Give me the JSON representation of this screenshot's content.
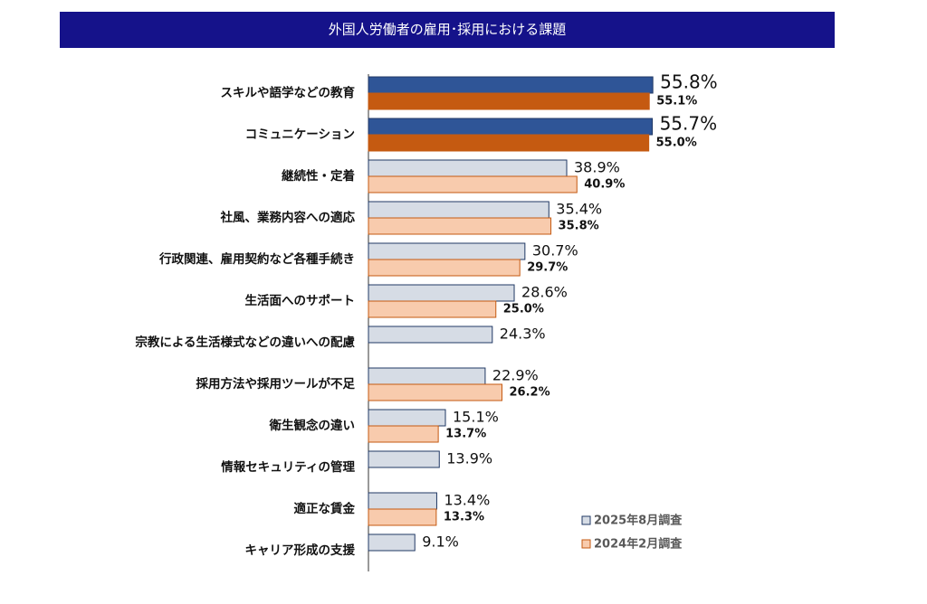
{
  "chart_data": {
    "type": "barh",
    "title": "外国人労働者の雇用･採用における課題",
    "categories": [
      "スキルや語学などの教育",
      "コミュニケーション",
      "継続性・定着",
      "社風、業務内容への適応",
      "行政関連、雇用契約など各種手続き",
      "生活面へのサポート",
      "宗教による生活様式などの違いへの配慮",
      "採用方法や採用ツールが不足",
      "衛生観念の違い",
      "情報セキュリティの管理",
      "適正な賃金",
      "キャリア形成の支援"
    ],
    "xlim": [
      0,
      100
    ],
    "legend": "lower right",
    "series": [
      {
        "name": "2025年8月調査",
        "color": "#d6dce5",
        "edgecolor": "#203864",
        "colors": [
          "#2f5597",
          "#2f5597",
          "#d6dce5",
          "#d6dce5",
          "#d6dce5",
          "#d6dce5",
          "#d6dce5",
          "#d6dce5",
          "#d6dce5",
          "#d6dce5",
          "#d6dce5",
          "#d6dce5"
        ],
        "values": [
          55.8,
          55.7,
          38.9,
          35.4,
          30.7,
          28.6,
          24.3,
          22.9,
          15.1,
          13.9,
          13.4,
          9.1
        ],
        "value_labels": [
          "55.8%",
          "55.7%",
          "38.9%",
          "35.4%",
          "30.7%",
          "28.6%",
          "24.3%",
          "22.9%",
          "15.1%",
          "13.9%",
          "13.4%",
          "9.1%"
        ]
      },
      {
        "name": "2024年2月調査",
        "color": "#f8cbad",
        "edgecolor": "#c55a11",
        "colors": [
          "#c55a11",
          "#c55a11",
          "#f8cbad",
          "#f8cbad",
          "#f8cbad",
          "#f8cbad",
          "#f8cbad",
          "#f8cbad",
          "#f8cbad",
          "#f8cbad",
          "#f8cbad",
          "#f8cbad"
        ],
        "values": [
          55.1,
          55.0,
          40.9,
          35.8,
          29.7,
          25.0,
          null,
          26.2,
          13.7,
          null,
          13.3,
          null
        ],
        "value_labels": [
          "55.1%",
          "55.0%",
          "40.9%",
          "35.8%",
          "29.7%",
          "25.0%",
          null,
          "26.2%",
          "13.7%",
          null,
          "13.3%",
          null
        ]
      }
    ]
  }
}
